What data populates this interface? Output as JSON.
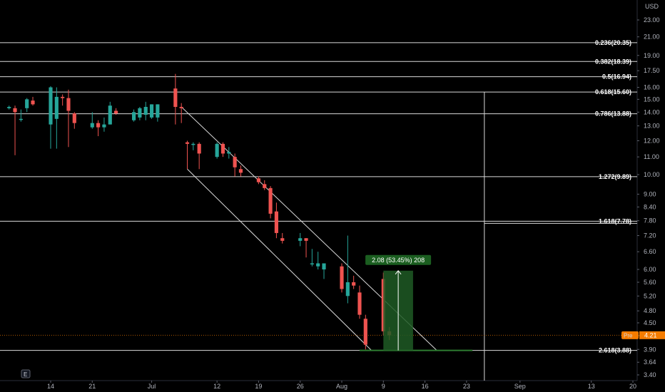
{
  "currency": "USD",
  "e_badge": "E",
  "price_badge": {
    "label": "Pre",
    "value": "4.21",
    "price": 4.21,
    "color": "#f57c00"
  },
  "colors": {
    "up": "#26a69a",
    "down": "#ef5350",
    "bg": "#000000",
    "line": "#d9d9d9",
    "measure_fill": "#1e5b24",
    "measure_label_bg": "#1b5e20"
  },
  "chart_data": {
    "type": "candlestick",
    "y_scale": "log",
    "ylim": [
      3.3,
      24.5
    ],
    "y_ticks": [
      "23.00",
      "21.00",
      "19.00",
      "17.50",
      "16.00",
      "15.00",
      "14.00",
      "13.00",
      "12.00",
      "11.00",
      "10.00",
      "9.00",
      "8.40",
      "7.80",
      "7.20",
      "6.60",
      "6.00",
      "5.60",
      "5.20",
      "4.80",
      "4.50",
      "4.20",
      "3.90",
      "3.64",
      "3.40"
    ],
    "x_ticks": [
      {
        "label": "14",
        "date": "2021-06-14"
      },
      {
        "label": "21",
        "date": "2021-06-21"
      },
      {
        "label": "Jul",
        "date": "2021-07-01"
      },
      {
        "label": "12",
        "date": "2021-07-12"
      },
      {
        "label": "19",
        "date": "2021-07-19"
      },
      {
        "label": "26",
        "date": "2021-07-26"
      },
      {
        "label": "Aug",
        "date": "2021-08-02"
      },
      {
        "label": "9",
        "date": "2021-08-09"
      },
      {
        "label": "16",
        "date": "2021-08-16"
      },
      {
        "label": "23",
        "date": "2021-08-23"
      },
      {
        "label": "Sep",
        "date": "2021-09-01"
      },
      {
        "label": "13",
        "date": "2021-09-13"
      },
      {
        "label": "20",
        "date": "2021-09-20"
      }
    ],
    "candles": [
      {
        "date": "2021-06-07",
        "o": 14.3,
        "h": 14.5,
        "l": 14.2,
        "c": 14.4
      },
      {
        "date": "2021-06-08",
        "o": 14.3,
        "h": 14.5,
        "l": 11.1,
        "c": 14.0
      },
      {
        "date": "2021-06-09",
        "o": 13.5,
        "h": 14.2,
        "l": 13.3,
        "c": 13.5
      },
      {
        "date": "2021-06-10",
        "o": 14.3,
        "h": 15.1,
        "l": 14.0,
        "c": 15.0
      },
      {
        "date": "2021-06-11",
        "o": 14.9,
        "h": 15.2,
        "l": 14.5,
        "c": 14.6
      },
      {
        "date": "2021-06-14",
        "o": 13.1,
        "h": 16.1,
        "l": 11.5,
        "c": 16.0
      },
      {
        "date": "2021-06-15",
        "o": 13.5,
        "h": 16.0,
        "l": 11.5,
        "c": 15.2
      },
      {
        "date": "2021-06-16",
        "o": 15.2,
        "h": 15.4,
        "l": 14.5,
        "c": 15.1
      },
      {
        "date": "2021-06-17",
        "o": 15.1,
        "h": 15.8,
        "l": 11.6,
        "c": 14.1
      },
      {
        "date": "2021-06-18",
        "o": 13.9,
        "h": 14.0,
        "l": 12.8,
        "c": 13.2
      },
      {
        "date": "2021-06-21",
        "o": 12.9,
        "h": 14.0,
        "l": 12.8,
        "c": 13.2
      },
      {
        "date": "2021-06-22",
        "o": 13.2,
        "h": 13.4,
        "l": 12.3,
        "c": 12.9
      },
      {
        "date": "2021-06-23",
        "o": 12.9,
        "h": 13.6,
        "l": 12.6,
        "c": 13.1
      },
      {
        "date": "2021-06-24",
        "o": 13.1,
        "h": 14.8,
        "l": 13.1,
        "c": 14.5
      },
      {
        "date": "2021-06-25",
        "o": 14.1,
        "h": 14.3,
        "l": 13.8,
        "c": 13.9
      },
      {
        "date": "2021-06-28",
        "o": 13.4,
        "h": 14.2,
        "l": 13.3,
        "c": 14.0
      },
      {
        "date": "2021-06-29",
        "o": 13.6,
        "h": 14.4,
        "l": 13.4,
        "c": 14.3
      },
      {
        "date": "2021-06-30",
        "o": 13.8,
        "h": 14.8,
        "l": 13.4,
        "c": 14.4
      },
      {
        "date": "2021-07-01",
        "o": 13.6,
        "h": 14.6,
        "l": 13.5,
        "c": 14.6
      },
      {
        "date": "2021-07-02",
        "o": 13.6,
        "h": 14.6,
        "l": 13.3,
        "c": 14.6
      },
      {
        "date": "2021-07-05",
        "o": 15.9,
        "h": 17.2,
        "l": 13.1,
        "c": 14.4
      },
      {
        "date": "2021-07-06",
        "o": 14.4,
        "h": 14.7,
        "l": 13.2,
        "c": 14.3
      },
      {
        "date": "2021-07-07",
        "o": 11.9,
        "h": 12.0,
        "l": 10.3,
        "c": 11.8
      },
      {
        "date": "2021-07-08",
        "o": 11.8,
        "h": 11.9,
        "l": 11.4,
        "c": 11.8
      },
      {
        "date": "2021-07-09",
        "o": 11.8,
        "h": 11.9,
        "l": 10.3,
        "c": 11.2
      },
      {
        "date": "2021-07-12",
        "o": 11.0,
        "h": 11.9,
        "l": 10.9,
        "c": 11.8
      },
      {
        "date": "2021-07-13",
        "o": 11.8,
        "h": 11.9,
        "l": 11.0,
        "c": 11.2
      },
      {
        "date": "2021-07-14",
        "o": 11.2,
        "h": 11.6,
        "l": 10.9,
        "c": 11.3
      },
      {
        "date": "2021-07-15",
        "o": 11.0,
        "h": 11.2,
        "l": 9.9,
        "c": 10.4
      },
      {
        "date": "2021-07-16",
        "o": 10.3,
        "h": 10.5,
        "l": 9.9,
        "c": 10.1
      },
      {
        "date": "2021-07-19",
        "o": 9.8,
        "h": 9.9,
        "l": 9.5,
        "c": 9.6
      },
      {
        "date": "2021-07-20",
        "o": 9.5,
        "h": 9.7,
        "l": 9.2,
        "c": 9.3
      },
      {
        "date": "2021-07-21",
        "o": 9.3,
        "h": 9.4,
        "l": 7.9,
        "c": 8.1
      },
      {
        "date": "2021-07-22",
        "o": 8.2,
        "h": 8.6,
        "l": 7.1,
        "c": 7.3
      },
      {
        "date": "2021-07-23",
        "o": 7.1,
        "h": 7.3,
        "l": 6.9,
        "c": 7.0
      },
      {
        "date": "2021-07-26",
        "o": 7.0,
        "h": 7.3,
        "l": 6.8,
        "c": 7.1
      },
      {
        "date": "2021-07-27",
        "o": 7.1,
        "h": 7.1,
        "l": 6.4,
        "c": 7.0
      },
      {
        "date": "2021-07-28",
        "o": 6.2,
        "h": 6.7,
        "l": 6.1,
        "c": 6.2
      },
      {
        "date": "2021-07-29",
        "o": 6.1,
        "h": 6.6,
        "l": 6.0,
        "c": 6.2
      },
      {
        "date": "2021-07-30",
        "o": 6.0,
        "h": 6.2,
        "l": 5.7,
        "c": 6.2
      },
      {
        "date": "2021-08-02",
        "o": 6.1,
        "h": 6.2,
        "l": 5.3,
        "c": 5.4
      },
      {
        "date": "2021-08-03",
        "o": 5.2,
        "h": 7.2,
        "l": 5.0,
        "c": 5.6
      },
      {
        "date": "2021-08-04",
        "o": 5.6,
        "h": 5.8,
        "l": 5.4,
        "c": 5.5
      },
      {
        "date": "2021-08-05",
        "o": 5.3,
        "h": 5.5,
        "l": 4.6,
        "c": 4.7
      },
      {
        "date": "2021-08-06",
        "o": 4.6,
        "h": 4.7,
        "l": 3.9,
        "c": 4.0
      },
      {
        "date": "2021-08-09",
        "o": 5.7,
        "h": 5.9,
        "l": 4.2,
        "c": 4.3
      },
      {
        "date": "2021-08-10",
        "o": 4.3,
        "h": 4.4,
        "l": 4.1,
        "c": 4.21
      }
    ],
    "fib_levels": [
      {
        "label": "0.236(20.35)",
        "price": 20.35
      },
      {
        "label": "0.382(18.39)",
        "price": 18.39
      },
      {
        "label": "0.5(16.94)",
        "price": 16.94
      },
      {
        "label": "0.618(15.60)",
        "price": 15.6
      },
      {
        "label": "0.786(13.88)",
        "price": 13.88
      },
      {
        "label": "1.272(9.89)",
        "price": 9.89
      },
      {
        "label": "1.618(7.78)",
        "price": 7.78
      },
      {
        "label": "2.618(3.88)",
        "price": 3.88
      }
    ],
    "channel": {
      "upper": [
        {
          "date": "2021-07-06",
          "price": 14.4
        },
        {
          "date": "2021-08-18",
          "price": 3.88
        }
      ],
      "lower": [
        {
          "date": "2021-07-07",
          "price": 10.3
        },
        {
          "date": "2021-08-07",
          "price": 3.88
        }
      ]
    },
    "measure": {
      "label": "2.08 (53.45%) 208",
      "from_price": 3.88,
      "to_price": 5.96,
      "from_date": "2021-08-09",
      "to_date": "2021-08-14"
    },
    "vertical_marker": {
      "date": "2021-08-26",
      "top_price": 15.6
    },
    "vline_stub": {
      "price": 7.78,
      "from_date": "2021-08-26"
    }
  }
}
